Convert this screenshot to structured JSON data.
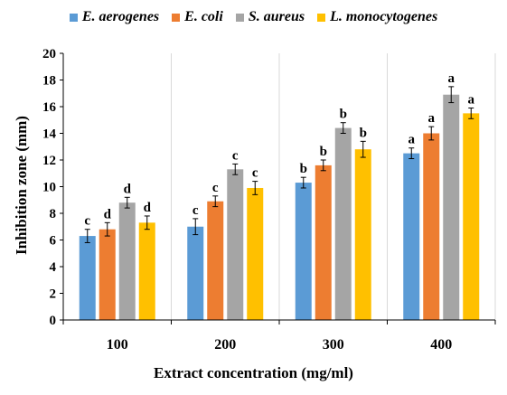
{
  "chart_data": {
    "type": "bar",
    "title": "",
    "xlabel": "Extract concentration (mg/ml)",
    "ylabel": "Inhibition zone (mm)",
    "categories": [
      "100",
      "200",
      "300",
      "400"
    ],
    "ylim": [
      0,
      20
    ],
    "yticks": [
      "0",
      "2",
      "4",
      "6",
      "8",
      "10",
      "12",
      "14",
      "16",
      "18",
      "20"
    ],
    "grid": "vertical-category-separators",
    "legend_position": "top",
    "series": [
      {
        "name": "E. aerogenes",
        "color": "#5B9BD5",
        "values": [
          6.3,
          7.0,
          10.3,
          12.5
        ],
        "errors": [
          0.5,
          0.6,
          0.4,
          0.4
        ],
        "labels": [
          "c",
          "c",
          "b",
          "a"
        ]
      },
      {
        "name": "E. coli",
        "color": "#ED7D31",
        "values": [
          6.8,
          8.9,
          11.6,
          14.0
        ],
        "errors": [
          0.5,
          0.4,
          0.4,
          0.5
        ],
        "labels": [
          "d",
          "c",
          "b",
          "a"
        ]
      },
      {
        "name": "S. aureus",
        "color": "#A5A5A5",
        "values": [
          8.8,
          11.3,
          14.4,
          16.9
        ],
        "errors": [
          0.4,
          0.4,
          0.4,
          0.6
        ],
        "labels": [
          "d",
          "c",
          "b",
          "a"
        ]
      },
      {
        "name": "L. monocytogenes",
        "color": "#FFC000",
        "values": [
          7.3,
          9.9,
          12.8,
          15.5
        ],
        "errors": [
          0.5,
          0.5,
          0.6,
          0.4
        ],
        "labels": [
          "d",
          "c",
          "b",
          "a"
        ]
      }
    ]
  }
}
